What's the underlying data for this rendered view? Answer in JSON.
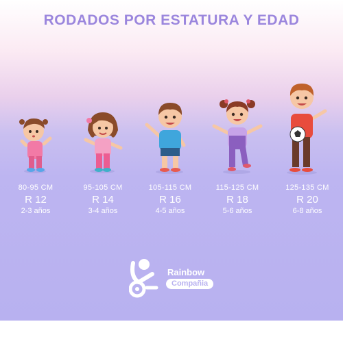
{
  "title": "RODADOS POR ESTATURA Y EDAD",
  "items": [
    {
      "height": "80-95 CM",
      "rodado": "R 12",
      "age": "2-3 años"
    },
    {
      "height": "95-105 CM",
      "rodado": "R 14",
      "age": "3-4 años"
    },
    {
      "height": "105-115 CM",
      "rodado": "R 16",
      "age": "4-5 años"
    },
    {
      "height": "115-125 CM",
      "rodado": "R 18",
      "age": "5-6 años"
    },
    {
      "height": "125-135 CM",
      "rodado": "R 20",
      "age": "6-8 años"
    }
  ],
  "brand": {
    "name": "Rainbow",
    "sub": "Compañia"
  },
  "colors": {
    "title": "#9b86dd",
    "background_bottom": "#b8b1f0",
    "text": "#ffffff"
  },
  "icons": [
    "toddler-girl-icon",
    "girl-icon",
    "boy-icon",
    "girl-pigtails-icon",
    "boy-soccer-ball-icon",
    "rainbow-logo-icon"
  ]
}
